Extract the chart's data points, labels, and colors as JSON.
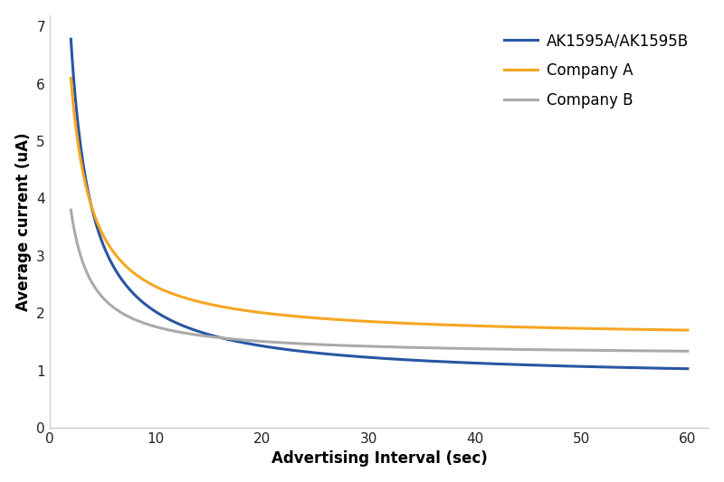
{
  "title": "",
  "xlabel": "Advertising Interval (sec)",
  "ylabel": "Average current (uA)",
  "xlim": [
    0,
    62
  ],
  "ylim": [
    0,
    7.2
  ],
  "yticks": [
    0,
    1,
    2,
    3,
    4,
    5,
    6,
    7
  ],
  "xticks": [
    0,
    10,
    20,
    30,
    40,
    50,
    60
  ],
  "series": [
    {
      "label": "AK1595A/AK1595B",
      "color": "#2856a3",
      "linewidth": 2.2,
      "x_start": 2.0,
      "x_end": 60,
      "a": 11.9,
      "b": 0.83,
      "power": 1.0
    },
    {
      "label": "Company A",
      "color": "#f5a623",
      "linewidth": 2.2,
      "x_start": 2.0,
      "x_end": 60,
      "a": 9.1,
      "b": 1.55,
      "power": 1.0
    },
    {
      "label": "Company B",
      "color": "#aaaaaa",
      "linewidth": 2.2,
      "x_start": 2.0,
      "x_end": 60,
      "a": 5.1,
      "b": 1.25,
      "power": 1.0
    }
  ],
  "legend_fontsize": 12,
  "axis_label_fontsize": 12,
  "tick_fontsize": 11,
  "background_color": "#ffffff",
  "spine_color": "#cccccc",
  "grid": false
}
